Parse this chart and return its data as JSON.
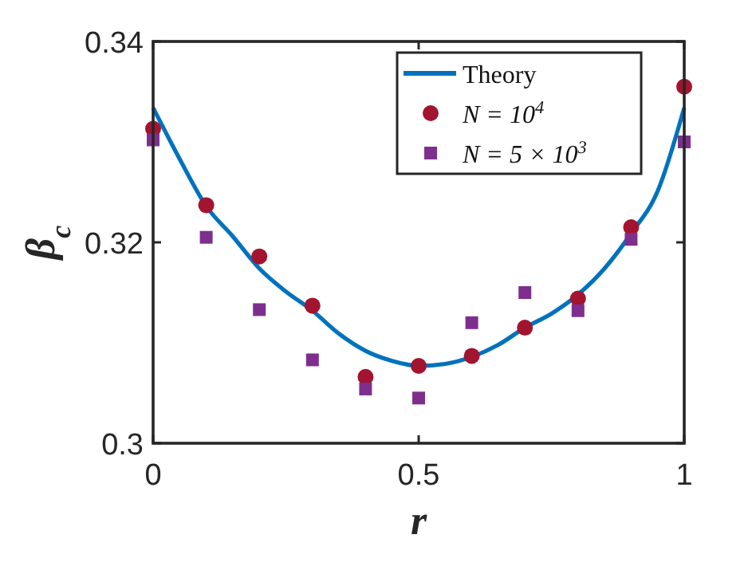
{
  "chart_data": {
    "type": "scatter",
    "xlabel": "r",
    "ylabel": "β$_{c}$",
    "xlim": [
      0,
      1
    ],
    "ylim": [
      0.3,
      0.34
    ],
    "xticks": [
      0,
      0.5,
      1
    ],
    "yticks": [
      0.3,
      0.32,
      0.34
    ],
    "grid": false,
    "legend": "top right",
    "series": [
      {
        "name": "Theory",
        "type": "line",
        "color": "#0072bd",
        "marker": "none",
        "line_style": "solid",
        "x": [
          0,
          0.05,
          0.1,
          0.15,
          0.2,
          0.25,
          0.3,
          0.35,
          0.4,
          0.45,
          0.5,
          0.55,
          0.6,
          0.65,
          0.7,
          0.75,
          0.8,
          0.85,
          0.9,
          0.95,
          1
        ],
        "values": [
          0.3334,
          0.3283,
          0.3236,
          0.3206,
          0.3174,
          0.3151,
          0.3132,
          0.3109,
          0.3092,
          0.3082,
          0.3077,
          0.3079,
          0.3086,
          0.3098,
          0.3115,
          0.3129,
          0.3148,
          0.3174,
          0.3209,
          0.3251,
          0.3334
        ]
      },
      {
        "name": "N = 10$^{4}$",
        "color": "#a2142f",
        "marker": "circle",
        "x": [
          0,
          0.1,
          0.2,
          0.3,
          0.4,
          0.5,
          0.6,
          0.7,
          0.8,
          0.9,
          1
        ],
        "values": [
          0.3313,
          0.3237,
          0.3186,
          0.3137,
          0.3066,
          0.3077,
          0.3087,
          0.3115,
          0.3144,
          0.3215,
          0.3355
        ]
      },
      {
        "name": "N = 5 × 10$^{3}$",
        "color": "#7e2f8e",
        "marker": "square",
        "x": [
          0,
          0.1,
          0.2,
          0.3,
          0.4,
          0.5,
          0.6,
          0.7,
          0.8,
          0.9,
          1
        ],
        "values": [
          0.3302,
          0.3205,
          0.3133,
          0.3083,
          0.3054,
          0.3045,
          0.312,
          0.315,
          0.3132,
          0.3203,
          0.33
        ]
      }
    ]
  }
}
